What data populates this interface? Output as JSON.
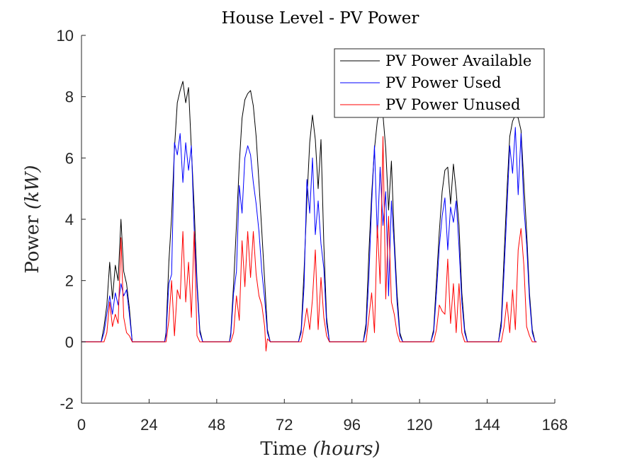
{
  "chart_data": {
    "type": "line",
    "title": "House Level - PV Power",
    "xlabel": {
      "prefix": "Time ",
      "unit": "(hours)"
    },
    "ylabel": {
      "prefix": "Power ",
      "unit": "(kW)"
    },
    "xlim": [
      0,
      168
    ],
    "ylim": [
      -2,
      10
    ],
    "xticks": [
      0,
      24,
      48,
      72,
      96,
      120,
      144,
      168
    ],
    "yticks": [
      -2,
      0,
      2,
      4,
      6,
      8,
      10
    ],
    "legend_position": "top-right",
    "series": [
      {
        "name": "PV Power Available",
        "color": "#000000",
        "points": [
          [
            0,
            0
          ],
          [
            7,
            0
          ],
          [
            8,
            0.5
          ],
          [
            9,
            1.2
          ],
          [
            10,
            2.6
          ],
          [
            11,
            1.4
          ],
          [
            12,
            2.5
          ],
          [
            13,
            2.0
          ],
          [
            14,
            4.0
          ],
          [
            15,
            2.3
          ],
          [
            16,
            1.9
          ],
          [
            17,
            1.1
          ],
          [
            18,
            0
          ],
          [
            29.5,
            0
          ],
          [
            30,
            0.3
          ],
          [
            31,
            2.6
          ],
          [
            32,
            4.1
          ],
          [
            33,
            6.3
          ],
          [
            34,
            7.8
          ],
          [
            35,
            8.2
          ],
          [
            36,
            8.5
          ],
          [
            37,
            7.8
          ],
          [
            38,
            8.3
          ],
          [
            39,
            6.3
          ],
          [
            40,
            4.4
          ],
          [
            41,
            2.0
          ],
          [
            42,
            0.4
          ],
          [
            43,
            0
          ],
          [
            52.5,
            0
          ],
          [
            53,
            0.3
          ],
          [
            54,
            1.9
          ],
          [
            55,
            3.8
          ],
          [
            56,
            5.8
          ],
          [
            57,
            7.3
          ],
          [
            58,
            7.9
          ],
          [
            59,
            8.1
          ],
          [
            60,
            8.2
          ],
          [
            61,
            7.7
          ],
          [
            62,
            6.7
          ],
          [
            63,
            5.2
          ],
          [
            64,
            3.6
          ],
          [
            65,
            2.0
          ],
          [
            66,
            0.4
          ],
          [
            67,
            0
          ],
          [
            77,
            0
          ],
          [
            78,
            0.4
          ],
          [
            79,
            2.3
          ],
          [
            80,
            4.6
          ],
          [
            81,
            6.5
          ],
          [
            82,
            7.4
          ],
          [
            83,
            6.6
          ],
          [
            84,
            5.0
          ],
          [
            85,
            6.6
          ],
          [
            86,
            3.2
          ],
          [
            87,
            0.8
          ],
          [
            88,
            0
          ],
          [
            100,
            0
          ],
          [
            101,
            0.6
          ],
          [
            102,
            2.9
          ],
          [
            103,
            4.8
          ],
          [
            104,
            6.3
          ],
          [
            105,
            7.2
          ],
          [
            106,
            7.6
          ],
          [
            107,
            7.4
          ],
          [
            108,
            6.3
          ],
          [
            109,
            4.3
          ],
          [
            110,
            5.9
          ],
          [
            111,
            3.4
          ],
          [
            112,
            1.6
          ],
          [
            113,
            0.3
          ],
          [
            114,
            0
          ],
          [
            124,
            0
          ],
          [
            125,
            0.4
          ],
          [
            126,
            2.0
          ],
          [
            127,
            3.6
          ],
          [
            128,
            4.9
          ],
          [
            129,
            5.6
          ],
          [
            130,
            5.7
          ],
          [
            131,
            4.5
          ],
          [
            132,
            5.8
          ],
          [
            133,
            4.9
          ],
          [
            134,
            3.8
          ],
          [
            135,
            1.6
          ],
          [
            136,
            0.4
          ],
          [
            137,
            0
          ],
          [
            148,
            0
          ],
          [
            149,
            0.7
          ],
          [
            150,
            2.8
          ],
          [
            151,
            4.9
          ],
          [
            152,
            6.7
          ],
          [
            153,
            7.2
          ],
          [
            154,
            7.4
          ],
          [
            155,
            7.3
          ],
          [
            156,
            6.9
          ],
          [
            157,
            5.2
          ],
          [
            158,
            3.6
          ],
          [
            159,
            1.6
          ],
          [
            160,
            0.4
          ],
          [
            161,
            0
          ],
          [
            161.5,
            0
          ]
        ]
      },
      {
        "name": "PV Power Used",
        "color": "#0000ff",
        "points": [
          [
            0,
            0
          ],
          [
            7,
            0
          ],
          [
            8,
            0.3
          ],
          [
            9,
            0.9
          ],
          [
            10,
            1.5
          ],
          [
            11,
            0.9
          ],
          [
            12,
            1.6
          ],
          [
            13,
            1.2
          ],
          [
            14,
            1.9
          ],
          [
            15,
            1.5
          ],
          [
            16,
            1.7
          ],
          [
            17,
            0.9
          ],
          [
            18,
            0
          ],
          [
            29.5,
            0
          ],
          [
            30,
            0.2
          ],
          [
            31,
            1.9
          ],
          [
            32,
            2.2
          ],
          [
            33,
            6.5
          ],
          [
            34,
            6.1
          ],
          [
            35,
            6.8
          ],
          [
            36,
            5.2
          ],
          [
            37,
            6.5
          ],
          [
            38,
            5.6
          ],
          [
            39,
            6.4
          ],
          [
            40,
            3.7
          ],
          [
            41,
            1.8
          ],
          [
            42,
            0.3
          ],
          [
            43,
            0
          ],
          [
            52.5,
            0
          ],
          [
            53,
            0.2
          ],
          [
            54,
            1.6
          ],
          [
            55,
            2.3
          ],
          [
            56,
            5.1
          ],
          [
            57,
            4.2
          ],
          [
            58,
            6.0
          ],
          [
            59,
            6.4
          ],
          [
            60,
            6.1
          ],
          [
            61,
            5.2
          ],
          [
            62,
            4.5
          ],
          [
            63,
            3.6
          ],
          [
            64,
            2.3
          ],
          [
            65,
            1.4
          ],
          [
            66,
            0.3
          ],
          [
            67,
            0
          ],
          [
            77,
            0
          ],
          [
            78,
            0.3
          ],
          [
            79,
            1.8
          ],
          [
            80,
            5.3
          ],
          [
            81,
            4.2
          ],
          [
            82,
            6.0
          ],
          [
            83,
            3.5
          ],
          [
            84,
            4.6
          ],
          [
            85,
            3.2
          ],
          [
            86,
            2.4
          ],
          [
            87,
            0.6
          ],
          [
            88,
            0
          ],
          [
            100,
            0
          ],
          [
            101,
            0.4
          ],
          [
            102,
            2.1
          ],
          [
            103,
            4.5
          ],
          [
            104,
            6.4
          ],
          [
            105,
            3.4
          ],
          [
            106,
            5.7
          ],
          [
            107,
            3.8
          ],
          [
            108,
            4.9
          ],
          [
            109,
            1.5
          ],
          [
            110,
            4.6
          ],
          [
            111,
            3.1
          ],
          [
            112,
            1.3
          ],
          [
            113,
            0.2
          ],
          [
            114,
            0
          ],
          [
            124,
            0
          ],
          [
            125,
            0.3
          ],
          [
            126,
            1.6
          ],
          [
            127,
            3.1
          ],
          [
            128,
            4.1
          ],
          [
            129,
            4.7
          ],
          [
            130,
            3.0
          ],
          [
            131,
            4.4
          ],
          [
            132,
            3.9
          ],
          [
            133,
            4.6
          ],
          [
            134,
            3.1
          ],
          [
            135,
            1.3
          ],
          [
            136,
            0.3
          ],
          [
            137,
            0
          ],
          [
            148,
            0
          ],
          [
            149,
            0.5
          ],
          [
            150,
            2.3
          ],
          [
            151,
            4.3
          ],
          [
            152,
            6.4
          ],
          [
            153,
            5.5
          ],
          [
            154,
            7.0
          ],
          [
            155,
            4.8
          ],
          [
            156,
            6.8
          ],
          [
            157,
            4.4
          ],
          [
            158,
            3.2
          ],
          [
            159,
            1.4
          ],
          [
            160,
            0.3
          ],
          [
            161,
            0
          ],
          [
            161.5,
            0
          ]
        ]
      },
      {
        "name": "PV Power Unused",
        "color": "#ff0000",
        "points": [
          [
            0,
            0
          ],
          [
            8,
            0
          ],
          [
            9,
            0.3
          ],
          [
            10,
            1.3
          ],
          [
            11,
            0.5
          ],
          [
            12,
            0.9
          ],
          [
            13,
            0.6
          ],
          [
            14,
            3.4
          ],
          [
            15,
            0.8
          ],
          [
            16,
            0.3
          ],
          [
            17,
            0.2
          ],
          [
            18,
            0
          ],
          [
            30,
            0
          ],
          [
            31,
            0.7
          ],
          [
            32,
            2.0
          ],
          [
            33,
            0.2
          ],
          [
            34,
            1.7
          ],
          [
            35,
            1.4
          ],
          [
            36,
            3.6
          ],
          [
            37,
            1.3
          ],
          [
            38,
            2.6
          ],
          [
            39,
            0.8
          ],
          [
            40,
            3.6
          ],
          [
            41,
            0.2
          ],
          [
            42,
            0
          ],
          [
            53,
            0
          ],
          [
            54,
            0.3
          ],
          [
            55,
            1.5
          ],
          [
            56,
            0.7
          ],
          [
            57,
            3.3
          ],
          [
            58,
            1.8
          ],
          [
            59,
            3.6
          ],
          [
            60,
            2.1
          ],
          [
            61,
            3.6
          ],
          [
            62,
            2.2
          ],
          [
            63,
            1.5
          ],
          [
            64,
            1.2
          ],
          [
            65,
            0.5
          ],
          [
            65.5,
            -0.3
          ],
          [
            66,
            0.1
          ],
          [
            67,
            0
          ],
          [
            78,
            0
          ],
          [
            79,
            0.5
          ],
          [
            80,
            1.1
          ],
          [
            81,
            0.4
          ],
          [
            82,
            1.4
          ],
          [
            83,
            3.0
          ],
          [
            84,
            0.4
          ],
          [
            85,
            2.1
          ],
          [
            86,
            0.8
          ],
          [
            87,
            0.2
          ],
          [
            88,
            0
          ],
          [
            101,
            0
          ],
          [
            102,
            0.8
          ],
          [
            103,
            1.6
          ],
          [
            104,
            0.3
          ],
          [
            105,
            3.8
          ],
          [
            106,
            1.9
          ],
          [
            107,
            6.7
          ],
          [
            108,
            1.4
          ],
          [
            109,
            4.1
          ],
          [
            110,
            1.3
          ],
          [
            111,
            0.9
          ],
          [
            112,
            0.3
          ],
          [
            113,
            0
          ],
          [
            125,
            0
          ],
          [
            126,
            0.4
          ],
          [
            127,
            1.2
          ],
          [
            128,
            1.0
          ],
          [
            129,
            0.9
          ],
          [
            130,
            2.7
          ],
          [
            131,
            0.6
          ],
          [
            132,
            1.9
          ],
          [
            133,
            0.3
          ],
          [
            134,
            1.9
          ],
          [
            135,
            0.3
          ],
          [
            136,
            0
          ],
          [
            149,
            0
          ],
          [
            150,
            0.5
          ],
          [
            151,
            1.3
          ],
          [
            152,
            0.3
          ],
          [
            153,
            1.7
          ],
          [
            154,
            0.4
          ],
          [
            155,
            3.0
          ],
          [
            156,
            3.7
          ],
          [
            157,
            2.5
          ],
          [
            158,
            0.5
          ],
          [
            159,
            0.2
          ],
          [
            160,
            0
          ],
          [
            161.5,
            0
          ]
        ]
      }
    ]
  }
}
